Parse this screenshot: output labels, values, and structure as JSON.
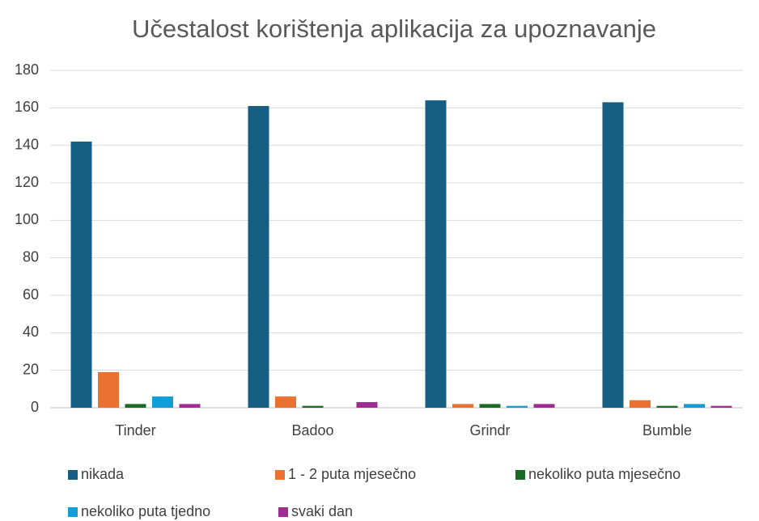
{
  "chart_data": {
    "type": "bar",
    "title": "Učestalost korištenja aplikacija za upoznavanje",
    "categories": [
      "Tinder",
      "Badoo",
      "Grindr",
      "Bumble"
    ],
    "series": [
      {
        "name": "nikada",
        "color": "#156082",
        "values": [
          142,
          161,
          164,
          163
        ]
      },
      {
        "name": "1 - 2 puta mjesečno",
        "color": "#e97132",
        "values": [
          19,
          6,
          2,
          4
        ]
      },
      {
        "name": "nekoliko puta mjesečno",
        "color": "#196b24",
        "values": [
          2,
          1,
          2,
          1
        ]
      },
      {
        "name": "nekoliko puta tjedno",
        "color": "#0f9ed5",
        "values": [
          6,
          0,
          1,
          2
        ]
      },
      {
        "name": "svaki dan",
        "color": "#a02b93",
        "values": [
          2,
          3,
          2,
          1
        ]
      }
    ],
    "ylim": [
      0,
      180
    ],
    "yticks": [
      0,
      20,
      40,
      60,
      80,
      100,
      120,
      140,
      160,
      180
    ],
    "grid": true,
    "legend": "bottom"
  }
}
